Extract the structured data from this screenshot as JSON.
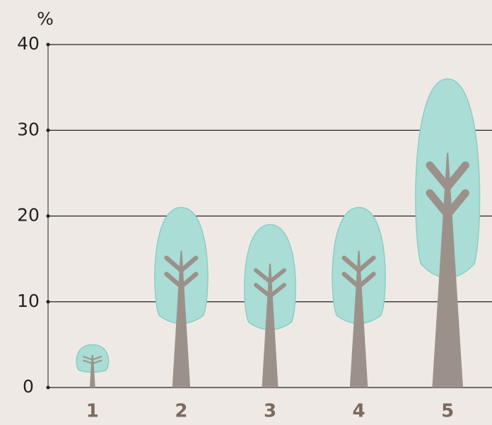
{
  "chart_data": {
    "type": "tree-pictogram",
    "y_label": "%",
    "categories": [
      "1",
      "2",
      "3",
      "4",
      "5"
    ],
    "values": [
      5,
      21,
      19,
      21,
      36
    ],
    "crown_color": "#a9ddd5",
    "trunk_color": "#9b918a",
    "ylim": [
      0,
      40
    ],
    "yticks": [
      0,
      10,
      20,
      30,
      40
    ],
    "grid": true
  }
}
